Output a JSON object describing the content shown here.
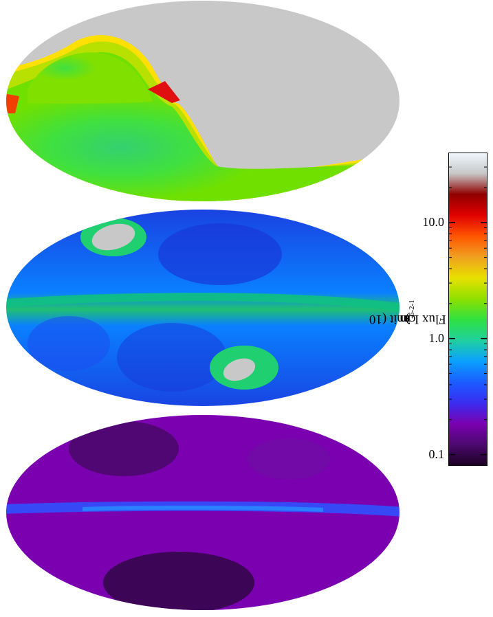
{
  "chart_data": {
    "type": "heatmap",
    "description_panels": 3,
    "panels": [
      {
        "name": "panel-1",
        "projection": "aitoff",
        "notes": "flux limit map with large unobserved (grey) region"
      },
      {
        "name": "panel-2",
        "projection": "aitoff",
        "notes": "flux limit map with two grey holes"
      },
      {
        "name": "panel-3",
        "projection": "aitoff",
        "notes": "full-sky flux limit map"
      }
    ],
    "colorbar": {
      "scale": "log",
      "range": [
        0.08,
        40
      ],
      "tick_values": [
        0.1,
        1.0,
        10.0
      ],
      "tick_labels": [
        "0.1",
        "1.0",
        "10.0"
      ],
      "label_main": "Flux Limit (10",
      "label_exp1": "-6",
      "label_mid": " cm",
      "label_exp2": "-2",
      "label_mid2": " s",
      "label_exp3": "-1",
      "label_end": ")",
      "colors": [
        "#1a0020",
        "#4b0a6e",
        "#7a00b0",
        "#3a2cf0",
        "#1a5cff",
        "#0aa0ff",
        "#20d0a0",
        "#2fe040",
        "#8fe000",
        "#e8e000",
        "#f0a020",
        "#ff5500",
        "#e00000",
        "#900000",
        "#c8c8c8",
        "#f0f8ff"
      ]
    },
    "mask_color": "#c8c8c8"
  }
}
